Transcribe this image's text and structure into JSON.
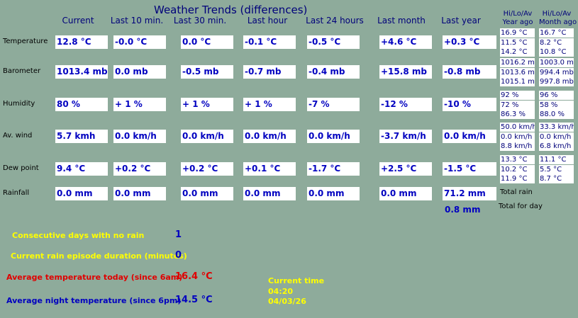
{
  "title": "Weather Trends (differences)",
  "columns": [
    "Current",
    "Last 10 min.",
    "Last 30 min.",
    "Last hour",
    "Last 24 hours",
    "Last month",
    "Last year"
  ],
  "hilo_headers": [
    {
      "line1": "Hi/Lo/Av",
      "line2": "Year ago"
    },
    {
      "line1": "Hi/Lo/Av",
      "line2": "Month ago"
    }
  ],
  "rows": [
    {
      "label": "Temperature",
      "values": [
        "12.8 °C",
        "-0.0 °C",
        "0.0 °C",
        "-0.1 °C",
        "-0.5 °C",
        "+4.6 °C",
        "+0.3 °C"
      ],
      "year_ago": [
        "16.9 °C",
        "11.5 °C",
        "14.2 °C"
      ],
      "month_ago": [
        "16.7 °C",
        "8.2 °C",
        "10.8 °C"
      ]
    },
    {
      "label": "Barometer",
      "values": [
        "1013.4 mb",
        "0.0 mb",
        "-0.5 mb",
        "-0.7 mb",
        "-0.4 mb",
        "+15.8 mb",
        "-0.8 mb"
      ],
      "year_ago": [
        "1016.2 mb",
        "1013.6 mb",
        "1015.1 mb"
      ],
      "month_ago": [
        "1003.0 mb",
        "994.4 mb",
        "997.8 mb"
      ]
    },
    {
      "label": "Humidity",
      "values": [
        "80 %",
        "+ 1 %",
        "+ 1 %",
        "+ 1 %",
        "-7 %",
        "-12 %",
        "-10 %"
      ],
      "year_ago": [
        "92 %",
        "72 %",
        "86.3 %"
      ],
      "month_ago": [
        "96 %",
        "58 %",
        "88.0 %"
      ]
    },
    {
      "label": "Av. wind",
      "values": [
        "5.7 kmh",
        "0.0 km/h",
        "0.0 km/h",
        "0.0 km/h",
        "0.0 km/h",
        "-3.7 km/h",
        "0.0 km/h"
      ],
      "year_ago": [
        "50.0 km/h",
        "0.0 km/h",
        "8.8 km/h"
      ],
      "month_ago": [
        "33.3 km/h",
        "0.0 km/h",
        "6.8 km/h"
      ]
    },
    {
      "label": "Dew point",
      "values": [
        "9.4 °C",
        "+0.2 °C",
        "+0.2 °C",
        "+0.1 °C",
        "-1.7 °C",
        "+2.5 °C",
        "-1.5 °C"
      ],
      "year_ago": [
        "13.3 °C",
        "10.2 °C",
        "11.9 °C"
      ],
      "month_ago": [
        "11.1 °C",
        "5.5 °C",
        "8.7 °C"
      ]
    },
    {
      "label": "Rainfall",
      "values": [
        "0.0 mm",
        "0.0 mm",
        "0.0 mm",
        "0.0 mm",
        "0.0 mm",
        "0.0 mm",
        "71.2 mm"
      ]
    }
  ],
  "rain_extra": {
    "total_rain_label": "Total rain",
    "day_value": "0.8 mm",
    "day_label": "Total for day"
  },
  "stats": [
    {
      "label": "Consecutive days with no rain",
      "value": "1"
    },
    {
      "label": "Current rain episode duration (minutes)",
      "value": "0"
    },
    {
      "label": "Average temperature today (since 6am)",
      "value": "16.4 °C"
    },
    {
      "label": "Average night temperature (since 6pm)",
      "value": "14.5 °C"
    }
  ],
  "time": {
    "label": "Current time",
    "time": "04:20",
    "date": "04/03/26"
  }
}
